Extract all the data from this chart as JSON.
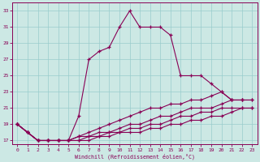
{
  "xlabel": "Windchill (Refroidissement éolien,°C)",
  "bg_color": "#cce8e4",
  "line_color": "#880055",
  "grid_color": "#99cccc",
  "xlim": [
    -0.5,
    23.5
  ],
  "ylim": [
    16.5,
    34
  ],
  "yticks": [
    17,
    19,
    21,
    23,
    25,
    27,
    29,
    31,
    33
  ],
  "xticks": [
    0,
    1,
    2,
    3,
    4,
    5,
    6,
    7,
    8,
    9,
    10,
    11,
    12,
    13,
    14,
    15,
    16,
    17,
    18,
    19,
    20,
    21,
    22,
    23
  ],
  "line0_x": [
    0,
    1,
    2,
    3,
    4,
    5,
    6,
    7,
    8,
    9,
    10,
    11,
    12,
    13,
    14,
    15,
    16,
    17,
    18,
    19,
    20,
    21,
    22
  ],
  "line0_y": [
    19,
    18,
    17,
    17,
    17,
    17,
    20,
    27,
    28,
    28.5,
    31,
    33,
    31,
    31,
    31,
    30,
    25,
    25,
    25,
    24,
    23,
    22,
    22
  ],
  "line1_x": [
    0,
    1,
    2,
    3,
    4,
    5,
    6,
    7,
    8,
    9,
    10,
    11,
    12,
    13,
    14,
    15,
    16,
    17,
    18,
    19,
    20,
    21,
    22,
    23
  ],
  "line1_y": [
    19,
    18,
    17,
    17,
    17,
    17,
    17.5,
    18,
    18.5,
    19,
    19.5,
    20,
    20.5,
    21,
    21,
    21.5,
    21.5,
    22,
    22,
    22.5,
    23,
    22,
    22,
    22
  ],
  "line2_x": [
    0,
    1,
    2,
    3,
    4,
    5,
    6,
    7,
    8,
    9,
    10,
    11,
    12,
    13,
    14,
    15,
    16,
    17,
    18,
    19,
    20,
    21,
    22,
    23
  ],
  "line2_y": [
    19,
    18,
    17,
    17,
    17,
    17,
    17.5,
    17.5,
    18,
    18,
    18.5,
    19,
    19,
    19.5,
    20,
    20,
    20.5,
    21,
    21,
    21,
    21.5,
    22,
    22,
    22
  ],
  "line3_x": [
    0,
    1,
    2,
    3,
    4,
    5,
    6,
    7,
    8,
    9,
    10,
    11,
    12,
    13,
    14,
    15,
    16,
    17,
    18,
    19,
    20,
    21,
    22,
    23
  ],
  "line3_y": [
    19,
    18,
    17,
    17,
    17,
    17,
    17,
    17.5,
    17.5,
    18,
    18,
    18.5,
    18.5,
    19,
    19,
    19.5,
    20,
    20,
    20.5,
    20.5,
    21,
    21,
    21,
    21
  ],
  "line4_x": [
    0,
    1,
    2,
    3,
    4,
    5,
    6,
    7,
    8,
    9,
    10,
    11,
    12,
    13,
    14,
    15,
    16,
    17,
    18,
    19,
    20,
    21,
    22,
    23
  ],
  "line4_y": [
    19,
    18,
    17,
    17,
    17,
    17,
    17,
    17,
    17.5,
    17.5,
    18,
    18,
    18,
    18.5,
    18.5,
    19,
    19,
    19.5,
    19.5,
    20,
    20,
    20.5,
    21,
    21
  ]
}
